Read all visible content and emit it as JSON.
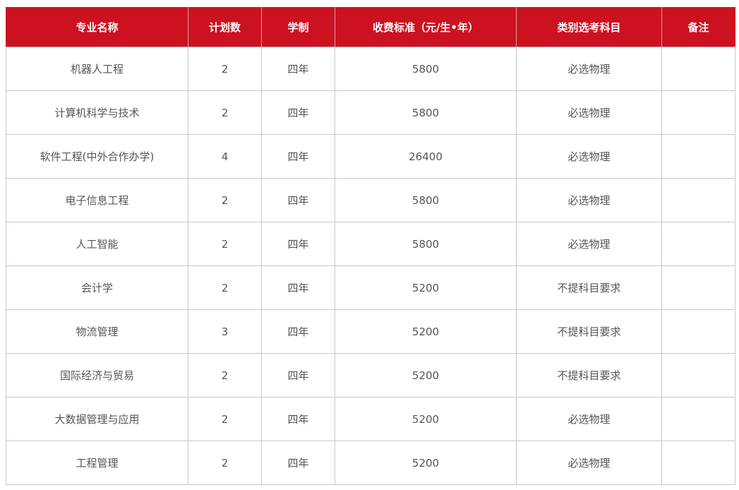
{
  "accent_color": "#cc1221",
  "headers": [
    "专业名称",
    "计划数",
    "学制",
    "收费标准（元/生•年）",
    "类别选考科目",
    "备注"
  ],
  "rows": [
    [
      "机器人工程",
      "2",
      "四年",
      "5800",
      "必选物理",
      ""
    ],
    [
      "计算机科学与技术",
      "2",
      "四年",
      "5800",
      "必选物理",
      ""
    ],
    [
      "软件工程(中外合作办学)",
      "4",
      "四年",
      "26400",
      "必选物理",
      ""
    ],
    [
      "电子信息工程",
      "2",
      "四年",
      "5800",
      "必选物理",
      ""
    ],
    [
      "人工智能",
      "2",
      "四年",
      "5800",
      "必选物理",
      ""
    ],
    [
      "会计学",
      "2",
      "四年",
      "5200",
      "不提科目要求",
      ""
    ],
    [
      "物流管理",
      "3",
      "四年",
      "5200",
      "不提科目要求",
      ""
    ],
    [
      "国际经济与贸易",
      "2",
      "四年",
      "5200",
      "不提科目要求",
      ""
    ],
    [
      "大数据管理与应用",
      "2",
      "四年",
      "5200",
      "必选物理",
      ""
    ],
    [
      "工程管理",
      "2",
      "四年",
      "5200",
      "必选物理",
      ""
    ]
  ]
}
